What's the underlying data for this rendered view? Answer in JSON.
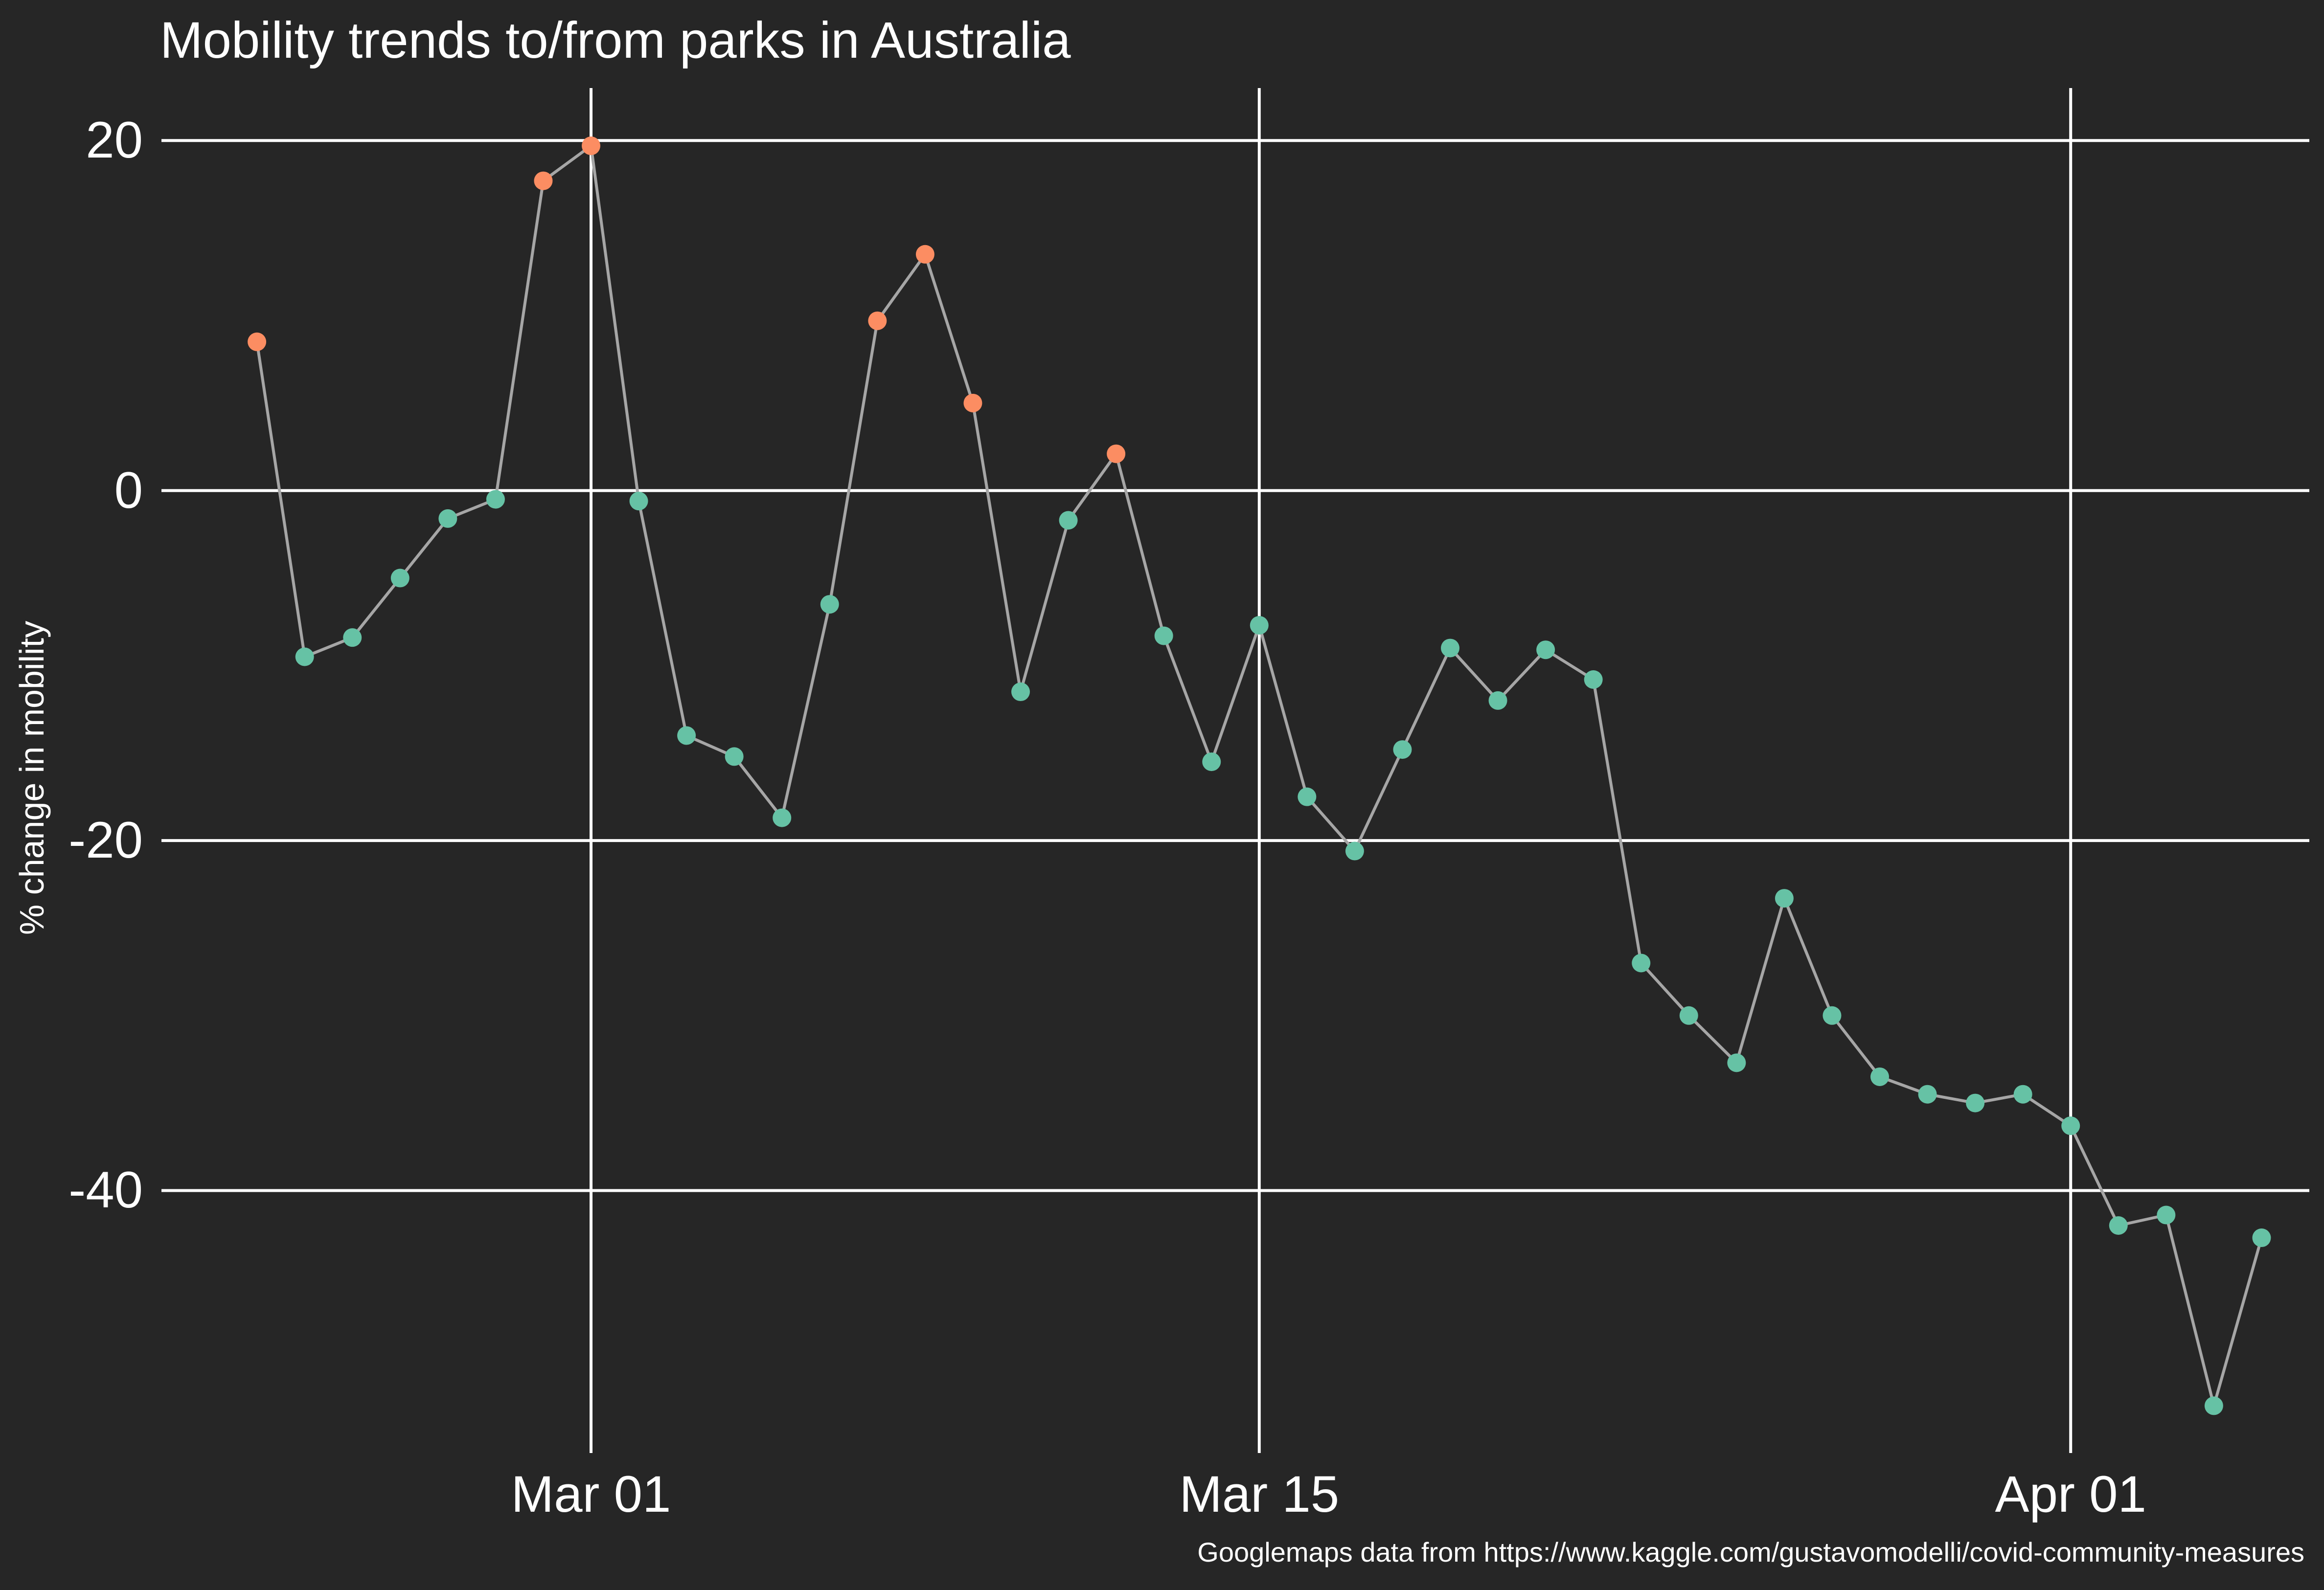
{
  "chart_data": {
    "type": "line",
    "title": "Mobility trends to/from parks in Australia",
    "xlabel": "",
    "ylabel": "% change in mobility",
    "caption": "Googlemaps data from https://www.kaggle.com/gustavomodelli/covid-community-measures",
    "x_ticks": [
      "Mar 01",
      "Mar 15",
      "Apr 01"
    ],
    "x_tick_dates": [
      "2020-03-01",
      "2020-03-15",
      "2020-04-01"
    ],
    "xlim": [
      "2020-02-21",
      "2020-04-06"
    ],
    "y_ticks": [
      20,
      0,
      -20,
      -40
    ],
    "ylim": [
      -55,
      23
    ],
    "grid": true,
    "line_color": "#a6a6a6",
    "colors": {
      "above_baseline": "#fc8d62",
      "below_baseline": "#66c2a5",
      "background": "#262626",
      "grid": "#ffffff",
      "text": "#ffffff"
    },
    "points": [
      {
        "date": "2020-02-23",
        "y": 8.5
      },
      {
        "date": "2020-02-24",
        "y": -9.5
      },
      {
        "date": "2020-02-25",
        "y": -8.4
      },
      {
        "date": "2020-02-26",
        "y": -5.0
      },
      {
        "date": "2020-02-27",
        "y": -1.6
      },
      {
        "date": "2020-02-28",
        "y": -0.5
      },
      {
        "date": "2020-02-29",
        "y": 17.7
      },
      {
        "date": "2020-03-01",
        "y": 19.7
      },
      {
        "date": "2020-03-02",
        "y": -0.6
      },
      {
        "date": "2020-03-03",
        "y": -14.0
      },
      {
        "date": "2020-03-04",
        "y": -15.2
      },
      {
        "date": "2020-03-05",
        "y": -18.7
      },
      {
        "date": "2020-03-06",
        "y": -6.5
      },
      {
        "date": "2020-03-07",
        "y": 9.7
      },
      {
        "date": "2020-03-08",
        "y": 13.5
      },
      {
        "date": "2020-03-09",
        "y": 5.0
      },
      {
        "date": "2020-03-10",
        "y": -11.5
      },
      {
        "date": "2020-03-11",
        "y": -1.7
      },
      {
        "date": "2020-03-12",
        "y": 2.1
      },
      {
        "date": "2020-03-13",
        "y": -8.3
      },
      {
        "date": "2020-03-14",
        "y": -15.5
      },
      {
        "date": "2020-03-15",
        "y": -7.7
      },
      {
        "date": "2020-03-16",
        "y": -17.5
      },
      {
        "date": "2020-03-17",
        "y": -20.6
      },
      {
        "date": "2020-03-18",
        "y": -14.8
      },
      {
        "date": "2020-03-19",
        "y": -9.0
      },
      {
        "date": "2020-03-20",
        "y": -12.0
      },
      {
        "date": "2020-03-21",
        "y": -9.1
      },
      {
        "date": "2020-03-22",
        "y": -10.8
      },
      {
        "date": "2020-03-23",
        "y": -27.0
      },
      {
        "date": "2020-03-24",
        "y": -30.0
      },
      {
        "date": "2020-03-25",
        "y": -32.7
      },
      {
        "date": "2020-03-26",
        "y": -23.3
      },
      {
        "date": "2020-03-27",
        "y": -30.0
      },
      {
        "date": "2020-03-28",
        "y": -33.5
      },
      {
        "date": "2020-03-29",
        "y": -34.5
      },
      {
        "date": "2020-03-30",
        "y": -35.0
      },
      {
        "date": "2020-03-31",
        "y": -34.5
      },
      {
        "date": "2020-04-01",
        "y": -36.3
      },
      {
        "date": "2020-04-02",
        "y": -42.0
      },
      {
        "date": "2020-04-03",
        "y": -41.4
      },
      {
        "date": "2020-04-04",
        "y": -52.3
      },
      {
        "date": "2020-04-05",
        "y": -42.7
      }
    ]
  }
}
